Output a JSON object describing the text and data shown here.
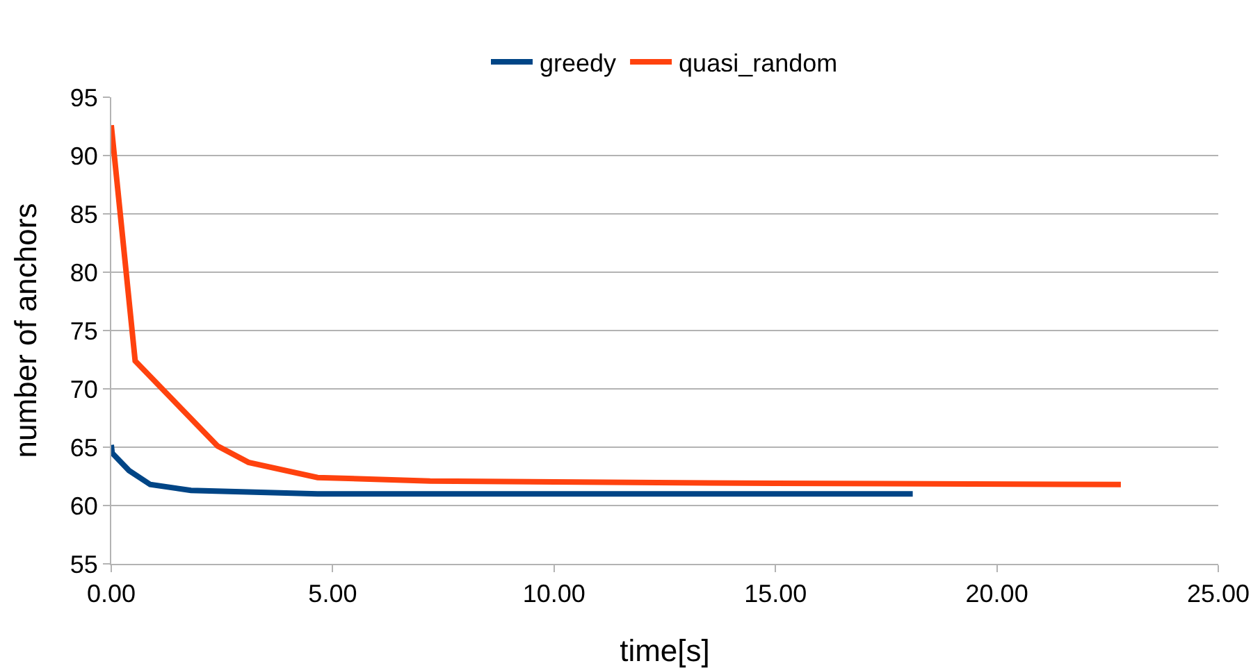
{
  "chart_data": {
    "type": "line",
    "xlabel": "time[s]",
    "ylabel": "number of anchors",
    "series": [
      {
        "name": "greedy",
        "color": "#004586",
        "x": [
          0,
          0.02,
          0.4,
          0.88,
          1.8,
          4.66,
          10,
          18.1
        ],
        "values": [
          65.2,
          64.5,
          63.0,
          61.8,
          61.3,
          61.0,
          61.0,
          61.0
        ]
      },
      {
        "name": "quasi_random",
        "color": "#ff420e",
        "x": [
          0,
          0.54,
          2.4,
          3.1,
          4.66,
          7.2,
          15,
          22.8
        ],
        "values": [
          92.6,
          72.4,
          65.1,
          63.7,
          62.4,
          62.1,
          61.9,
          61.8
        ]
      }
    ],
    "xlim": [
      0,
      25
    ],
    "xticks": [
      {
        "value": 0,
        "label": "0.00"
      },
      {
        "value": 5,
        "label": "5.00"
      },
      {
        "value": 10,
        "label": "10.00"
      },
      {
        "value": 15,
        "label": "15.00"
      },
      {
        "value": 20,
        "label": "20.00"
      },
      {
        "value": 25,
        "label": "25.00"
      }
    ],
    "ylim": [
      55,
      95
    ],
    "yticks": [
      55,
      60,
      65,
      70,
      75,
      80,
      85,
      90,
      95
    ],
    "grid": "y",
    "legend": "top",
    "marker": "none",
    "line_style": "solid"
  }
}
